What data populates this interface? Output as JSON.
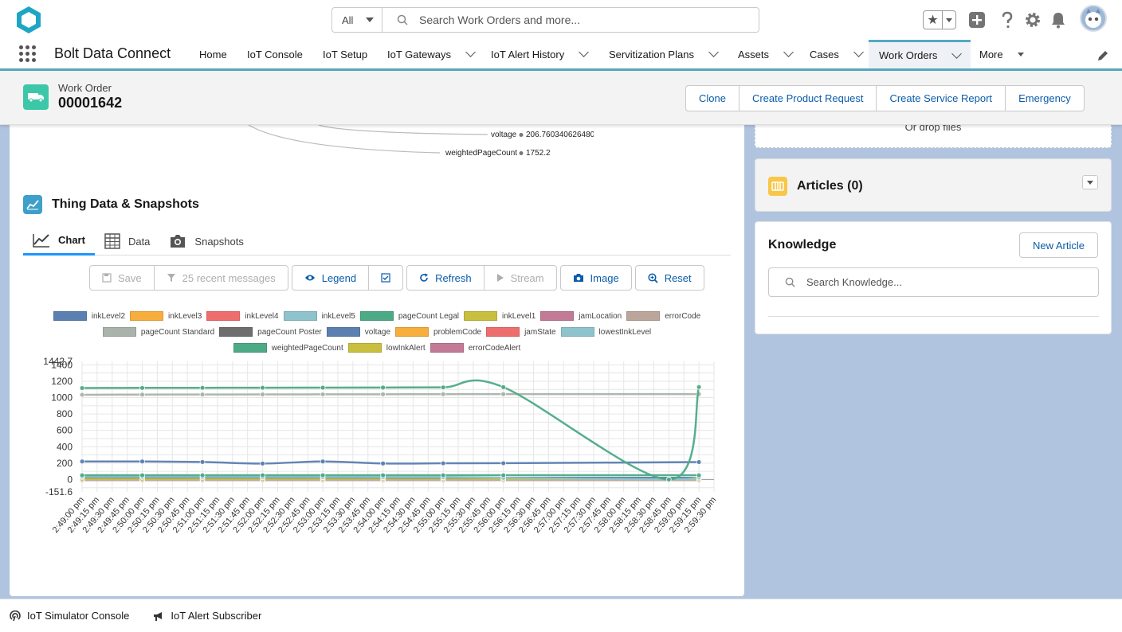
{
  "header": {
    "search_scope": "All",
    "search_placeholder": "Search Work Orders and more..."
  },
  "nav": {
    "app_name": "Bolt Data Connect",
    "items": [
      {
        "label": "Home"
      },
      {
        "label": "IoT Console"
      },
      {
        "label": "IoT Setup"
      },
      {
        "label": "IoT Gateways"
      },
      {
        "label": "IoT Alert History"
      },
      {
        "label": "Servitization Plans"
      },
      {
        "label": "Assets"
      },
      {
        "label": "Cases"
      },
      {
        "label": "Work Orders"
      },
      {
        "label": "More"
      }
    ]
  },
  "record": {
    "type": "Work Order",
    "name": "00001642",
    "actions": [
      "Clone",
      "Create Product Request",
      "Create Service Report",
      "Emergency"
    ]
  },
  "tree": {
    "voltage_label": "voltage",
    "voltage_value": "206.760340626480",
    "wpc_label": "weightedPageCount",
    "wpc_value": "1752.2"
  },
  "thing_data": {
    "title": "Thing Data & Snapshots",
    "tabs": [
      "Chart",
      "Data",
      "Snapshots"
    ],
    "toolbar": {
      "save": "Save",
      "recent": "25 recent messages",
      "legend": "Legend",
      "refresh": "Refresh",
      "stream": "Stream",
      "image": "Image",
      "reset": "Reset"
    }
  },
  "legend": [
    {
      "name": "inkLevel2",
      "color": "#5b80b0"
    },
    {
      "name": "inkLevel3",
      "color": "#f8ae3c"
    },
    {
      "name": "inkLevel4",
      "color": "#ee6e6e"
    },
    {
      "name": "inkLevel5",
      "color": "#8fc3cc"
    },
    {
      "name": "pageCount Legal",
      "color": "#4daa87"
    },
    {
      "name": "inkLevel1",
      "color": "#c9bf3f"
    },
    {
      "name": "jamLocation",
      "color": "#c27a95"
    },
    {
      "name": "errorCode",
      "color": "#bca59a"
    },
    {
      "name": "pageCount Standard",
      "color": "#a9b3ab"
    },
    {
      "name": "pageCount Poster",
      "color": "#6e6e6e"
    },
    {
      "name": "voltage",
      "color": "#5b80b0"
    },
    {
      "name": "problemCode",
      "color": "#f8ae3c"
    },
    {
      "name": "jamState",
      "color": "#ee6e6e"
    },
    {
      "name": "lowestInkLevel",
      "color": "#8fc3cc"
    },
    {
      "name": "weightedPageCount",
      "color": "#4daa87"
    },
    {
      "name": "lowInkAlert",
      "color": "#c9bf3f"
    },
    {
      "name": "errorCodeAlert",
      "color": "#c27a95"
    }
  ],
  "chart_data": {
    "type": "line",
    "title": "",
    "xlabel": "",
    "ylabel": "",
    "ylim": [
      -151.6,
      1442.7
    ],
    "y_ticks": [
      "1400",
      "1200",
      "1000",
      "800",
      "600",
      "400",
      "200",
      "0",
      "-151.6"
    ],
    "y_top_label": "1442.7",
    "x_ticks": [
      "2:49:00 pm",
      "2:49:15 pm",
      "2:49:30 pm",
      "2:49:45 pm",
      "2:50:00 pm",
      "2:50:15 pm",
      "2:50:30 pm",
      "2:50:45 pm",
      "2:51:00 pm",
      "2:51:15 pm",
      "2:51:30 pm",
      "2:51:45 pm",
      "2:52:00 pm",
      "2:52:15 pm",
      "2:52:30 pm",
      "2:52:45 pm",
      "2:53:00 pm",
      "2:53:15 pm",
      "2:53:30 pm",
      "2:53:45 pm",
      "2:54:00 pm",
      "2:54:15 pm",
      "2:54:30 pm",
      "2:54:45 pm",
      "2:55:00 pm",
      "2:55:15 pm",
      "2:55:30 pm",
      "2:55:45 pm",
      "2:56:00 pm",
      "2:56:15 pm",
      "2:56:30 pm",
      "2:56:45 pm",
      "2:57:00 pm",
      "2:57:15 pm",
      "2:57:30 pm",
      "2:57:45 pm",
      "2:58:00 pm",
      "2:58:15 pm",
      "2:58:30 pm",
      "2:58:45 pm",
      "2:59:00 pm",
      "2:59:15 pm",
      "2:59:30 pm"
    ],
    "grid": true,
    "series": [
      {
        "name": "weightedPageCount",
        "color": "#4daa87",
        "x": [
          0,
          4,
          8,
          12,
          16,
          20,
          24,
          28,
          39,
          41
        ],
        "y": [
          1117,
          1119,
          1120,
          1121,
          1122,
          1123,
          1125,
          1128,
          0,
          1130
        ]
      },
      {
        "name": "pageCount Standard",
        "color": "#a9b3ab",
        "x": [
          0,
          4,
          8,
          12,
          16,
          20,
          24,
          28,
          41
        ],
        "y": [
          1035,
          1037,
          1038,
          1039,
          1040,
          1041,
          1042,
          1043,
          1043
        ]
      },
      {
        "name": "voltage",
        "color": "#5b80b0",
        "x": [
          0,
          4,
          8,
          12,
          16,
          20,
          24,
          28,
          41
        ],
        "y": [
          220,
          220,
          214,
          195,
          220,
          196,
          198,
          199,
          213
        ]
      },
      {
        "name": "pageCount Legal",
        "color": "#4daa87",
        "x": [
          0,
          4,
          8,
          12,
          16,
          20,
          24,
          28,
          41
        ],
        "y": [
          52,
          52,
          52,
          52,
          52,
          52,
          52,
          52,
          52
        ]
      },
      {
        "name": "inkLevel5",
        "color": "#8fc3cc",
        "x": [
          0,
          4,
          8,
          12,
          16,
          20,
          24,
          28,
          39,
          41
        ],
        "y": [
          35,
          34,
          33,
          32,
          31,
          30,
          29,
          20,
          2,
          30
        ]
      },
      {
        "name": "inkLevel2",
        "color": "#5b80b0",
        "x": [
          0,
          4,
          8,
          12,
          16,
          20,
          24,
          28,
          41
        ],
        "y": [
          28,
          27,
          26,
          25,
          24,
          23,
          22,
          21,
          20
        ]
      },
      {
        "name": "inkLevel1",
        "color": "#c9bf3f",
        "x": [
          0,
          4,
          8,
          12,
          16,
          20,
          24,
          28,
          41
        ],
        "y": [
          8,
          8,
          8,
          8,
          8,
          8,
          8,
          5,
          5
        ]
      },
      {
        "name": "errorCode",
        "color": "#bca59a",
        "x": [
          0,
          4,
          8,
          12,
          16,
          20,
          24,
          28,
          41
        ],
        "y": [
          -8,
          -8,
          -8,
          -8,
          -8,
          -8,
          -8,
          -8,
          -8
        ]
      },
      {
        "name": "pageCount Poster",
        "color": "#6e6e6e",
        "x": [
          0,
          4,
          8,
          12,
          16,
          20,
          24,
          28,
          41
        ],
        "y": [
          18,
          18,
          18,
          18,
          18,
          18,
          18,
          18,
          18
        ]
      }
    ]
  },
  "right": {
    "drop_text": "Or drop files",
    "articles_title": "Articles (0)",
    "knowledge_title": "Knowledge",
    "new_article": "New Article",
    "knowledge_placeholder": "Search Knowledge..."
  },
  "utility": {
    "items": [
      "IoT Simulator Console",
      "IoT Alert Subscriber"
    ]
  }
}
